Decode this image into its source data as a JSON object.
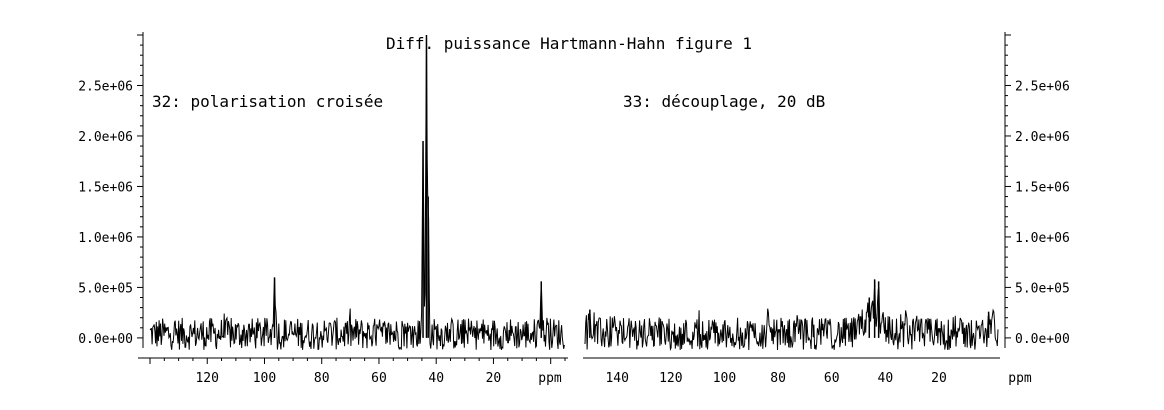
{
  "chart_data": {
    "type": "line",
    "title": "Diff. puissance Hartmann-Hahn figure 1",
    "ylim": [
      -100000,
      3000000
    ],
    "y_ticks": [
      "0.0e+00",
      "5.0e+05",
      "1.0e+06",
      "1.5e+06",
      "2.0e+06",
      "2.5e+06"
    ],
    "y_tick_values": [
      0,
      500000,
      1000000,
      1500000,
      2000000,
      2500000
    ],
    "xlabel": "ppm",
    "panels": [
      {
        "label": "32: polarisation croisée",
        "xlim": [
          140,
          -5
        ],
        "x_ticks": [
          "120",
          "100",
          "80",
          "60",
          "40",
          "20"
        ],
        "x_tick_values": [
          120,
          100,
          80,
          60,
          40,
          20
        ],
        "x_unit": "ppm",
        "y_axis_side": "left",
        "noise": {
          "min": -120000,
          "max": 200000
        },
        "peaks": [
          {
            "x": 96.5,
            "y": 600000
          },
          {
            "x": 44.6,
            "y": 1950000
          },
          {
            "x": 43.4,
            "y": 3000000
          },
          {
            "x": 42.8,
            "y": 1400000
          },
          {
            "x": 3.3,
            "y": 560000
          }
        ]
      },
      {
        "label": "33: découplage, 20 dB",
        "xlim": [
          152,
          -2
        ],
        "x_ticks": [
          "140",
          "120",
          "100",
          "80",
          "60",
          "40",
          "20"
        ],
        "x_tick_values": [
          140,
          120,
          100,
          80,
          60,
          40,
          20
        ],
        "x_unit": "ppm",
        "y_axis_side": "right",
        "noise": {
          "min": -120000,
          "max": 200000
        },
        "peaks": [
          {
            "x": 150.2,
            "y": 280000
          },
          {
            "x": 46.0,
            "y": 400000
          },
          {
            "x": 44.0,
            "y": 580000
          },
          {
            "x": 42.5,
            "y": 560000
          },
          {
            "x": 1.5,
            "y": 260000
          }
        ]
      }
    ]
  }
}
